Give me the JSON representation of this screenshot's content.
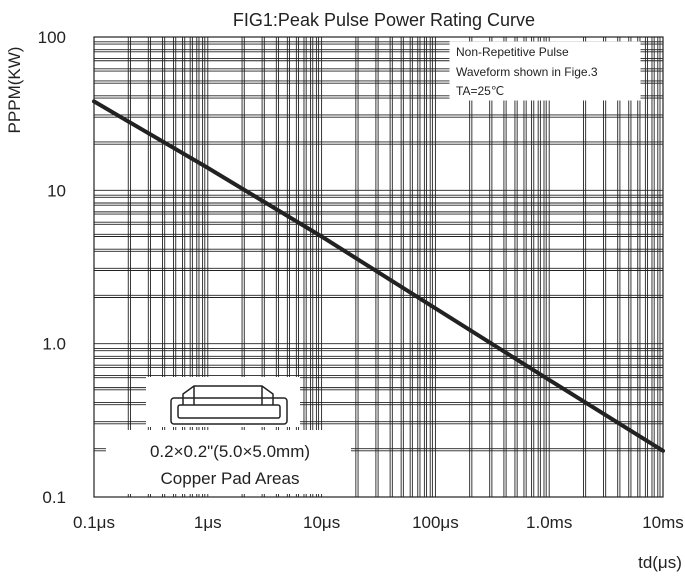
{
  "chart_data": {
    "type": "line",
    "title": "FIG1:Peak Pulse Power Rating Curve",
    "xlabel": "td(μs)",
    "ylabel": "PPPM(KW)",
    "x_scale": "log",
    "y_scale": "log",
    "xlim": [
      0.1,
      10000
    ],
    "ylim": [
      0.1,
      100
    ],
    "grid": true,
    "x_ticks": [
      {
        "value": 0.1,
        "label": "0.1μs"
      },
      {
        "value": 1,
        "label": "1μs"
      },
      {
        "value": 10,
        "label": "10μs"
      },
      {
        "value": 100,
        "label": "100μs"
      },
      {
        "value": 1000,
        "label": "1.0ms"
      },
      {
        "value": 10000,
        "label": "10ms"
      }
    ],
    "y_ticks": [
      {
        "value": 0.1,
        "label": "0.1"
      },
      {
        "value": 1,
        "label": "1.0"
      },
      {
        "value": 10,
        "label": "10"
      },
      {
        "value": 100,
        "label": "100"
      }
    ],
    "series": [
      {
        "x": [
          0.1,
          1,
          10,
          100,
          1000,
          10000
        ],
        "y": [
          38,
          14,
          5,
          1.7,
          0.58,
          0.2
        ]
      }
    ],
    "annotations": {
      "notes": [
        "Non-Repetitive Pulse",
        "Waveform shown in Fige.3",
        "TA=25℃"
      ],
      "inset": [
        "0.2×0.2\"(5.0×5.0mm)",
        "Copper Pad Areas"
      ]
    }
  }
}
